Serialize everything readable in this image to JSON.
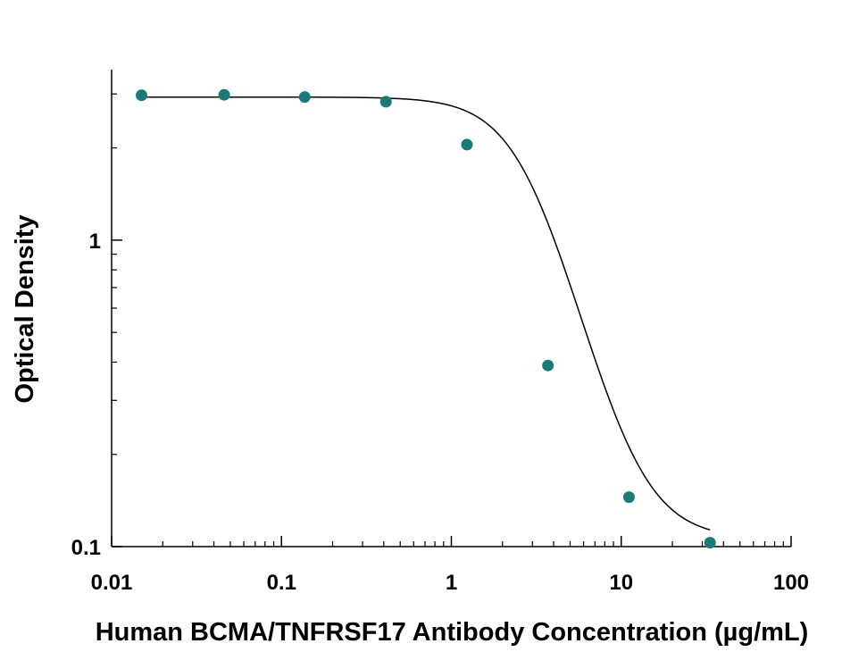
{
  "chart_data": {
    "type": "scatter",
    "title": "",
    "xlabel": "Human BCMA/TNFRSF17 Antibody Concentration (µg/mL)",
    "ylabel": "Optical Density",
    "x_scale": "log",
    "y_scale": "log",
    "xlim": [
      0.01,
      100
    ],
    "ylim": [
      0.1,
      3.6
    ],
    "x_ticks": [
      {
        "value": 0.01,
        "label": "0.01"
      },
      {
        "value": 0.1,
        "label": "0.1"
      },
      {
        "value": 1,
        "label": "1"
      },
      {
        "value": 10,
        "label": "10"
      },
      {
        "value": 100,
        "label": "100"
      }
    ],
    "y_ticks": [
      {
        "value": 0.1,
        "label": "0.1"
      },
      {
        "value": 1,
        "label": "1"
      }
    ],
    "grid": false,
    "legend": "none",
    "series": [
      {
        "points": [
          {
            "x": 0.015,
            "y": 2.97
          },
          {
            "x": 0.046,
            "y": 2.98
          },
          {
            "x": 0.137,
            "y": 2.93
          },
          {
            "x": 0.412,
            "y": 2.83
          },
          {
            "x": 1.235,
            "y": 2.05
          },
          {
            "x": 3.704,
            "y": 0.39
          },
          {
            "x": 11.11,
            "y": 0.145
          },
          {
            "x": 33.33,
            "y": 0.103
          }
        ],
        "color": "#1a7a78"
      }
    ],
    "fit_curve": {
      "model": "4PL",
      "top": 2.93,
      "bottom": 0.106,
      "ec50": 2.95,
      "hill": 2.45,
      "color": "#000000"
    }
  }
}
